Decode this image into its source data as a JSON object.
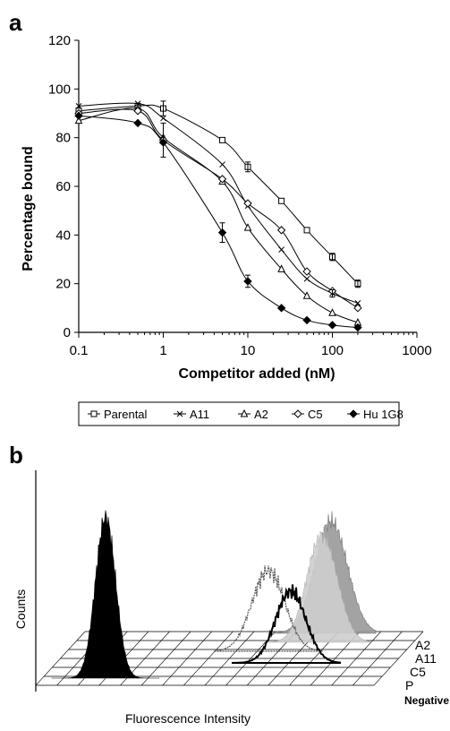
{
  "panel_a_label": "a",
  "panel_b_label": "b",
  "chart_data": [
    {
      "type": "line",
      "xscale": "log",
      "xlim": [
        0.1,
        1000
      ],
      "ylim": [
        0,
        120
      ],
      "xticks": [
        {
          "value": 0.1,
          "label": "0.1"
        },
        {
          "value": 1,
          "label": "1"
        },
        {
          "value": 10,
          "label": "10"
        },
        {
          "value": 100,
          "label": "100"
        },
        {
          "value": 1000,
          "label": "1000"
        }
      ],
      "yticks": [
        0,
        20,
        40,
        60,
        80,
        100,
        120
      ],
      "xlabel": "Competitor added (nM)",
      "ylabel": "Percentage bound",
      "legend_position": "bottom",
      "series": [
        {
          "name": "Parental",
          "marker": "square",
          "x": [
            0.1,
            0.5,
            1.0,
            5.0,
            10,
            25,
            50,
            100,
            200
          ],
          "y": [
            91,
            93,
            92,
            79,
            68,
            54,
            42,
            31,
            20
          ]
        },
        {
          "name": "A11",
          "marker": "x",
          "x": [
            0.1,
            0.5,
            1.0,
            5.0,
            10,
            25,
            50,
            100,
            200
          ],
          "y": [
            93,
            94,
            88,
            69,
            52,
            34,
            22,
            16,
            12
          ]
        },
        {
          "name": "A2",
          "marker": "triangle",
          "x": [
            0.1,
            0.5,
            1.0,
            5.0,
            10,
            25,
            50,
            100,
            200
          ],
          "y": [
            87,
            92,
            80,
            62,
            43,
            26,
            15,
            8,
            4
          ]
        },
        {
          "name": "C5",
          "marker": "diamond",
          "x": [
            0.1,
            0.5,
            1.0,
            5.0,
            10,
            25,
            50,
            100,
            200
          ],
          "y": [
            90,
            91,
            79,
            63,
            53,
            42,
            25,
            17,
            10
          ]
        },
        {
          "name": "Hu 1G8",
          "marker": "filled-diamond",
          "x": [
            0.1,
            0.5,
            1.0,
            5.0,
            10,
            25,
            50,
            100,
            200
          ],
          "y": [
            89,
            86,
            78,
            41,
            21,
            10,
            5,
            3,
            2
          ]
        }
      ]
    },
    {
      "type": "histogram-overlay",
      "xlabel": "Fluorescence Intensity",
      "ylabel": "Counts",
      "series": [
        {
          "name": "A2"
        },
        {
          "name": "A11"
        },
        {
          "name": "C5"
        },
        {
          "name": "P"
        },
        {
          "name": "Negative"
        }
      ]
    }
  ]
}
